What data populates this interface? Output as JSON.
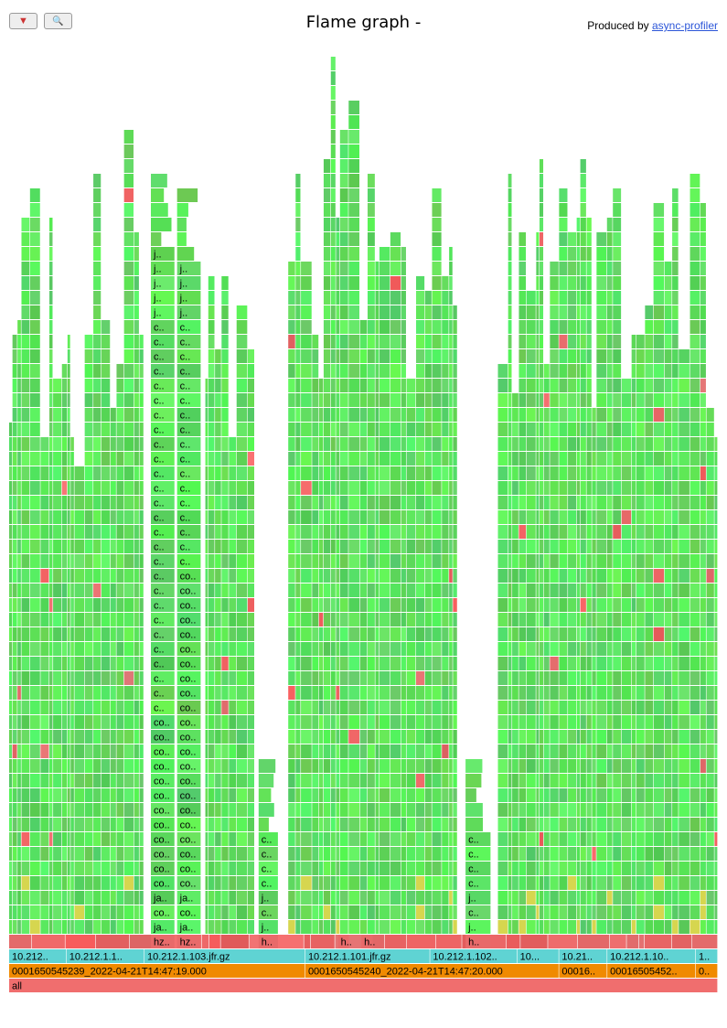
{
  "toolbar": {
    "reverse_icon": "reverse-icon",
    "reverse_glyph": "▼",
    "search_icon": "search-icon",
    "search_glyph": "🔍"
  },
  "header": {
    "title": "Flame graph -",
    "produced_by": "Produced by",
    "profiler_link": "async-profiler"
  },
  "colors": {
    "root": "#f06e6e",
    "file": "#5fd3d3",
    "timestamp": "#f08a00",
    "native": "#f26a6a",
    "java_green": "#5fe65f",
    "inlined": "#d6d64f"
  },
  "frames": {
    "root": [
      {
        "label": "all",
        "start": 0.0,
        "end": 1.0
      }
    ],
    "timestamps": [
      {
        "label": "0001650545239_2022-04-21T14:47:19.000",
        "start": 0.0,
        "end": 0.418
      },
      {
        "label": "0001650545240_2022-04-21T14:47:20.000",
        "start": 0.418,
        "end": 0.776
      },
      {
        "label": "00016..",
        "start": 0.776,
        "end": 0.844
      },
      {
        "label": "00016505452..",
        "start": 0.844,
        "end": 0.969
      },
      {
        "label": "0..",
        "start": 0.969,
        "end": 1.0
      }
    ],
    "files": [
      {
        "label": "10.212..",
        "start": 0.0,
        "end": 0.081
      },
      {
        "label": "10.212.1.1..",
        "start": 0.081,
        "end": 0.191
      },
      {
        "label": "10.212.1.103.jfr.gz",
        "start": 0.191,
        "end": 0.418
      },
      {
        "label": "10.212.1.101.jfr.gz",
        "start": 0.418,
        "end": 0.594
      },
      {
        "label": "10.212.1.102..",
        "start": 0.594,
        "end": 0.717
      },
      {
        "label": "10...",
        "start": 0.717,
        "end": 0.776
      },
      {
        "label": "10.21..",
        "start": 0.776,
        "end": 0.844
      },
      {
        "label": "10.212.1.10..",
        "start": 0.844,
        "end": 0.969
      },
      {
        "label": "1..",
        "start": 0.969,
        "end": 1.0
      }
    ],
    "native_row": [
      {
        "label": "hz..",
        "start": 0.2,
        "end": 0.234
      },
      {
        "label": "hz..",
        "start": 0.237,
        "end": 0.271
      },
      {
        "label": "h..",
        "start": 0.352,
        "end": 0.38
      },
      {
        "label": "h..",
        "start": 0.464,
        "end": 0.48
      },
      {
        "label": "h..",
        "start": 0.497,
        "end": 0.514
      },
      {
        "label": "h..",
        "start": 0.644,
        "end": 0.68
      }
    ],
    "labeled_stacks": [
      {
        "x": 0.2,
        "width": 0.034,
        "labels": [
          "ja..",
          "co..",
          "ja..",
          "co..",
          "co..",
          "co..",
          "co..",
          "co..",
          "co..",
          "co..",
          "co..",
          "co..",
          "co..",
          "co..",
          "co..",
          "c..",
          "c..",
          "c..",
          "c..",
          "c..",
          "c..",
          "c..",
          "c..",
          "c..",
          "c..",
          "c..",
          "c..",
          "c..",
          "c..",
          "c..",
          "c..",
          "c..",
          "c..",
          "c..",
          "c..",
          "c..",
          "c..",
          "c..",
          "c..",
          "c..",
          "c..",
          "c..",
          "j..",
          "j..",
          "j..",
          "j..",
          "j.."
        ]
      },
      {
        "x": 0.237,
        "width": 0.034,
        "labels": [
          "ja..",
          "co..",
          "ja..",
          "co..",
          "co..",
          "co..",
          "co..",
          "co..",
          "co..",
          "co..",
          "co..",
          "co..",
          "co..",
          "co..",
          "co..",
          "co..",
          "co..",
          "co..",
          "co..",
          "co..",
          "co..",
          "co..",
          "co..",
          "co..",
          "co..",
          "c..",
          "c..",
          "c..",
          "c..",
          "c..",
          "c..",
          "c..",
          "c..",
          "c..",
          "c..",
          "c..",
          "c..",
          "c..",
          "c..",
          "c..",
          "c..",
          "c..",
          "j..",
          "j..",
          "j..",
          "j.."
        ]
      },
      {
        "x": 0.352,
        "width": 0.028,
        "labels": [
          "j..",
          "c..",
          "j..",
          "c..",
          "c..",
          "c..",
          "c.."
        ]
      },
      {
        "x": 0.644,
        "width": 0.036,
        "labels": [
          "j..",
          "c..",
          "j..",
          "c..",
          "c..",
          "c..",
          "c.."
        ]
      }
    ]
  }
}
